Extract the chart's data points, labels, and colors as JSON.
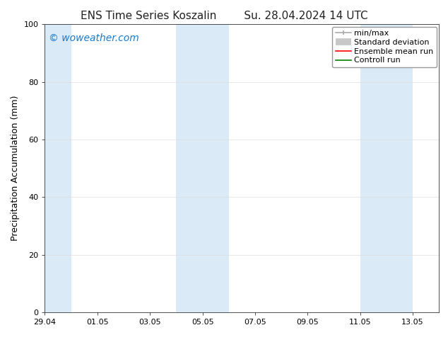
{
  "title_left": "ENS Time Series Koszalin",
  "title_right": "Su. 28.04.2024 14 UTC",
  "ylabel": "Precipitation Accumulation (mm)",
  "ylim": [
    0,
    100
  ],
  "yticks": [
    0,
    20,
    40,
    60,
    80,
    100
  ],
  "xtick_labels": [
    "29.04",
    "01.05",
    "03.05",
    "05.05",
    "07.05",
    "09.05",
    "11.05",
    "13.05"
  ],
  "background_color": "#ffffff",
  "plot_bg_color": "#ffffff",
  "watermark": "© woweather.com",
  "watermark_color": "#1a7acc",
  "shade_color": "#daeaf7",
  "shade_regions_dates": [
    [
      "2024-04-28",
      "2024-04-30"
    ],
    [
      "2024-05-04",
      "2024-05-06"
    ],
    [
      "2024-05-11",
      "2024-05-13"
    ]
  ],
  "xlim_start": "2024-04-29",
  "xlim_end": "2024-05-14",
  "legend_items": [
    {
      "label": "min/max",
      "color": "#aaaaaa",
      "lw": 1.2
    },
    {
      "label": "Standard deviation",
      "color": "#c8c8c8",
      "lw": 7
    },
    {
      "label": "Ensemble mean run",
      "color": "#ff0000",
      "lw": 1.2
    },
    {
      "label": "Controll run",
      "color": "#008000",
      "lw": 1.2
    }
  ],
  "title_fontsize": 11,
  "axis_label_fontsize": 9,
  "tick_fontsize": 8,
  "watermark_fontsize": 10,
  "legend_fontsize": 8
}
